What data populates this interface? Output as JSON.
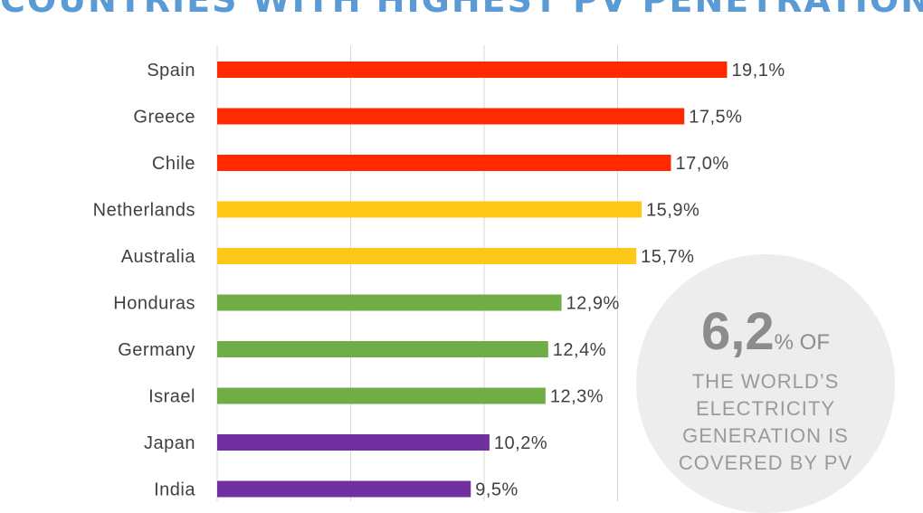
{
  "title": "COUNTRIES WITH HIGHEST PV PENETRATION",
  "colors": {
    "red": "#ff2a00",
    "yellow": "#ffc819",
    "green": "#70ad47",
    "purple": "#7030a0",
    "title": "#5b9bd5",
    "gridline": "#d9d9d9"
  },
  "chart_data": {
    "type": "bar",
    "orientation": "horizontal",
    "categories": [
      "Spain",
      "Greece",
      "Chile",
      "Netherlands",
      "Australia",
      "Honduras",
      "Germany",
      "Israel",
      "Japan",
      "India"
    ],
    "values": [
      19.1,
      17.5,
      17.0,
      15.9,
      15.7,
      12.9,
      12.4,
      12.3,
      10.2,
      9.5
    ],
    "value_labels": [
      "19,1%",
      "17,5%",
      "17,0%",
      "15,9%",
      "15,7%",
      "12,9%",
      "12,4%",
      "12,3%",
      "10,2%",
      "9,5%"
    ],
    "bar_colors": [
      "red",
      "red",
      "red",
      "yellow",
      "yellow",
      "green",
      "green",
      "green",
      "purple",
      "purple"
    ],
    "xlim": [
      0,
      20
    ],
    "gridlines": [
      5,
      10,
      15
    ],
    "grid": true,
    "legend": "none"
  },
  "callout": {
    "value": "6,2",
    "suffix": "% OF",
    "lines": [
      "THE WORLD’S",
      "ELECTRICITY",
      "GENERATION IS",
      "COVERED BY PV"
    ]
  }
}
